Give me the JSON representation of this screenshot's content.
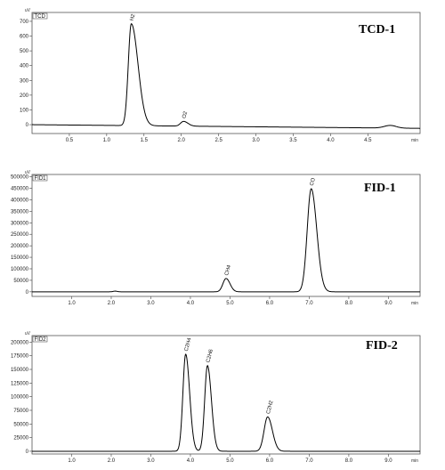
{
  "chart_data": [
    {
      "type": "line",
      "title": "TCD-1",
      "detector_label": "TCD",
      "y_unit": "uV",
      "x_unit": "min",
      "xlim": [
        0,
        5.2
      ],
      "ylim": [
        -60,
        760
      ],
      "x_ticks": [
        0.5,
        1.0,
        1.5,
        2.0,
        2.5,
        3.0,
        3.5,
        4.0,
        4.5
      ],
      "x_tick_labels": [
        "0.5",
        "1.0",
        "1.5",
        "2.0",
        "2.5",
        "3.0",
        "3.5",
        "4.0",
        "4.5"
      ],
      "y_ticks": [
        0,
        100,
        200,
        300,
        400,
        500,
        600,
        700
      ],
      "y_tick_labels": [
        "0",
        "100",
        "200",
        "300",
        "400",
        "500",
        "600",
        "700"
      ],
      "baseline": 0,
      "drift": -25,
      "peaks": [
        {
          "label": "H2",
          "x": 1.33,
          "height": 690,
          "sigma": 0.04,
          "tail": 0.05
        },
        {
          "label": "O2",
          "x": 2.03,
          "height": 32,
          "sigma": 0.04,
          "tail": 0.02
        },
        {
          "label": "",
          "x": 4.8,
          "height": 18,
          "sigma": 0.08,
          "tail": 0.0
        }
      ],
      "grid": false
    },
    {
      "type": "line",
      "title": "FID-1",
      "detector_label": "FID1",
      "y_unit": "uV",
      "x_unit": "min",
      "xlim": [
        0,
        9.8
      ],
      "ylim": [
        -20000,
        510000
      ],
      "x_ticks": [
        1,
        2,
        3,
        4,
        5,
        6,
        7,
        8,
        9
      ],
      "x_tick_labels": [
        "1.0",
        "2.0",
        "3.0",
        "4.0",
        "5.0",
        "6.0",
        "7.0",
        "8.0",
        "9.0"
      ],
      "y_ticks": [
        0,
        50000,
        100000,
        150000,
        200000,
        250000,
        300000,
        350000,
        400000,
        450000,
        500000
      ],
      "y_tick_labels": [
        "0",
        "50000",
        "100000",
        "150000",
        "200000",
        "250000",
        "300000",
        "350000",
        "400000",
        "450000",
        "500000"
      ],
      "baseline": 0,
      "drift": 0,
      "peaks": [
        {
          "label": "",
          "x": 2.1,
          "height": 3000,
          "sigma": 0.05,
          "tail": 0.0
        },
        {
          "label": "CH4",
          "x": 4.9,
          "height": 58000,
          "sigma": 0.08,
          "tail": 0.02
        },
        {
          "label": "CO",
          "x": 7.05,
          "height": 448000,
          "sigma": 0.1,
          "tail": 0.04
        }
      ],
      "grid": false
    },
    {
      "type": "line",
      "title": "FID-2",
      "detector_label": "FID2",
      "y_unit": "uV",
      "x_unit": "min",
      "xlim": [
        0,
        9.8
      ],
      "ylim": [
        -5000,
        212000
      ],
      "x_ticks": [
        1,
        2,
        3,
        4,
        5,
        6,
        7,
        8,
        9
      ],
      "x_tick_labels": [
        "1.0",
        "2.0",
        "3.0",
        "4.0",
        "5.0",
        "6.0",
        "7.0",
        "8.0",
        "9.0"
      ],
      "y_ticks": [
        0,
        25000,
        50000,
        75000,
        100000,
        125000,
        150000,
        175000,
        200000
      ],
      "y_tick_labels": [
        "0",
        "25000",
        "50000",
        "75000",
        "100000",
        "125000",
        "150000",
        "175000",
        "200000"
      ],
      "baseline": 0,
      "drift": 0,
      "peaks": [
        {
          "label": "C2H4",
          "x": 3.88,
          "height": 178000,
          "sigma": 0.07,
          "tail": 0.03
        },
        {
          "label": "C2H6",
          "x": 4.43,
          "height": 157000,
          "sigma": 0.07,
          "tail": 0.03
        },
        {
          "label": "C2H2",
          "x": 5.95,
          "height": 63000,
          "sigma": 0.09,
          "tail": 0.03
        }
      ],
      "grid": false
    }
  ]
}
